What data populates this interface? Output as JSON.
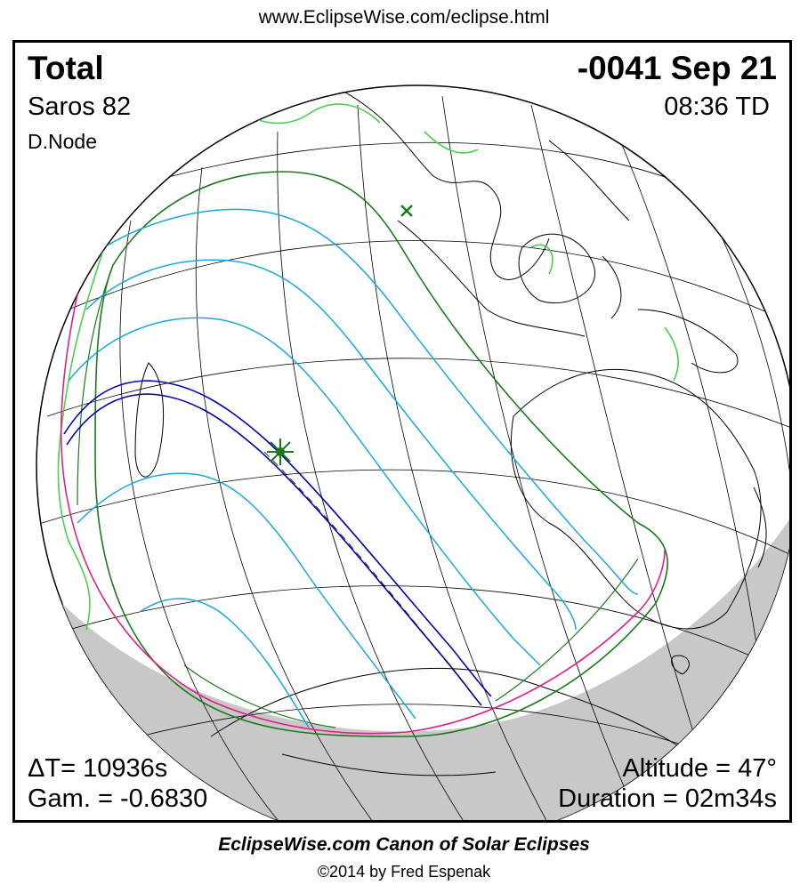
{
  "header": {
    "url": "www.EclipseWise.com/eclipse.html"
  },
  "eclipse": {
    "type": "Total",
    "date": "-0041 Sep 21",
    "saros": "Saros  82",
    "time": "08:36 TD",
    "node": "D.Node",
    "delta_t": "ΔT=  10936s",
    "gamma": "Gam. = -0.6830",
    "altitude": "Altitude = 47°",
    "duration": "Duration = 02m34s"
  },
  "map": {
    "colors": {
      "totality_path": "#0000b0",
      "penumbra_limits": "#1a7a1a",
      "contact_lines": "#1aa8e0",
      "rise_set_curve": "#e0208a",
      "greatest_eclipse_marker": "#1a7a1a",
      "subsolar_marker": "#1a7a1a",
      "coastlines": "#000000",
      "highlighted_coast": "#4ad04a",
      "night_shade": "#c8c8c8"
    }
  },
  "footer": {
    "title": "EclipseWise.com Canon of Solar Eclipses",
    "copyright": "©2014 by Fred Espenak"
  }
}
